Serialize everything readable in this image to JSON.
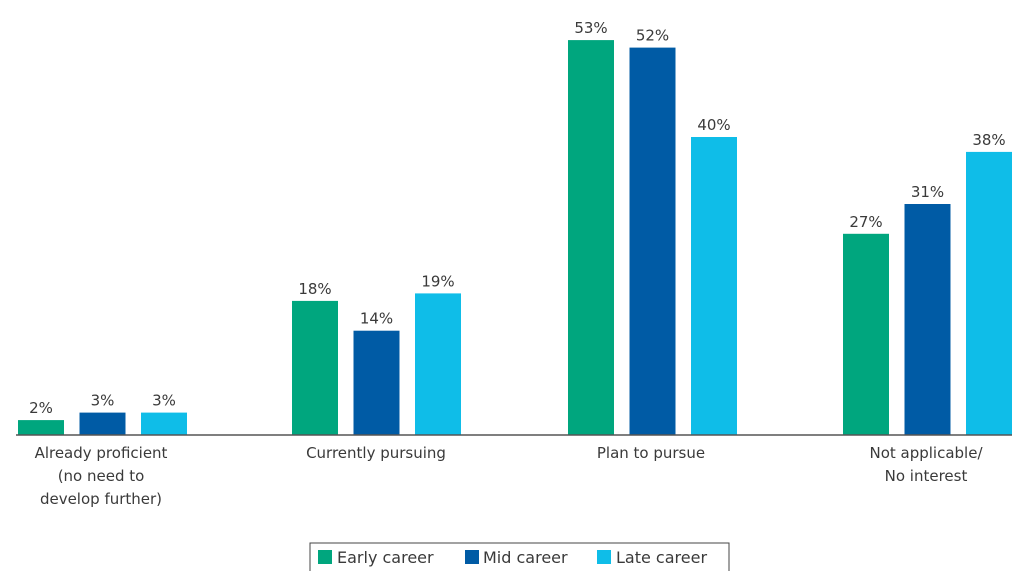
{
  "chart_data": {
    "type": "bar",
    "title": "",
    "xlabel": "",
    "ylabel": "",
    "ylim": [
      0,
      55
    ],
    "grid": false,
    "legend_position": "bottom-center",
    "categories": [
      [
        "Already proficient",
        "(no need to",
        "develop further)"
      ],
      [
        "Currently pursuing"
      ],
      [
        "Plan to pursue"
      ],
      [
        "Not applicable/",
        "No interest"
      ]
    ],
    "series": [
      {
        "name": "Early career",
        "color": "#00a67e",
        "values": [
          2,
          18,
          53,
          27
        ],
        "labels": [
          "2%",
          "18%",
          "53%",
          "27%"
        ]
      },
      {
        "name": "Mid career",
        "color": "#005ba5",
        "values": [
          3,
          14,
          52,
          31
        ],
        "labels": [
          "3%",
          "14%",
          "52%",
          "31%"
        ]
      },
      {
        "name": "Late career",
        "color": "#0fbde8",
        "values": [
          3,
          19,
          40,
          38
        ],
        "labels": [
          "3%",
          "19%",
          "40%",
          "38%"
        ]
      }
    ]
  }
}
